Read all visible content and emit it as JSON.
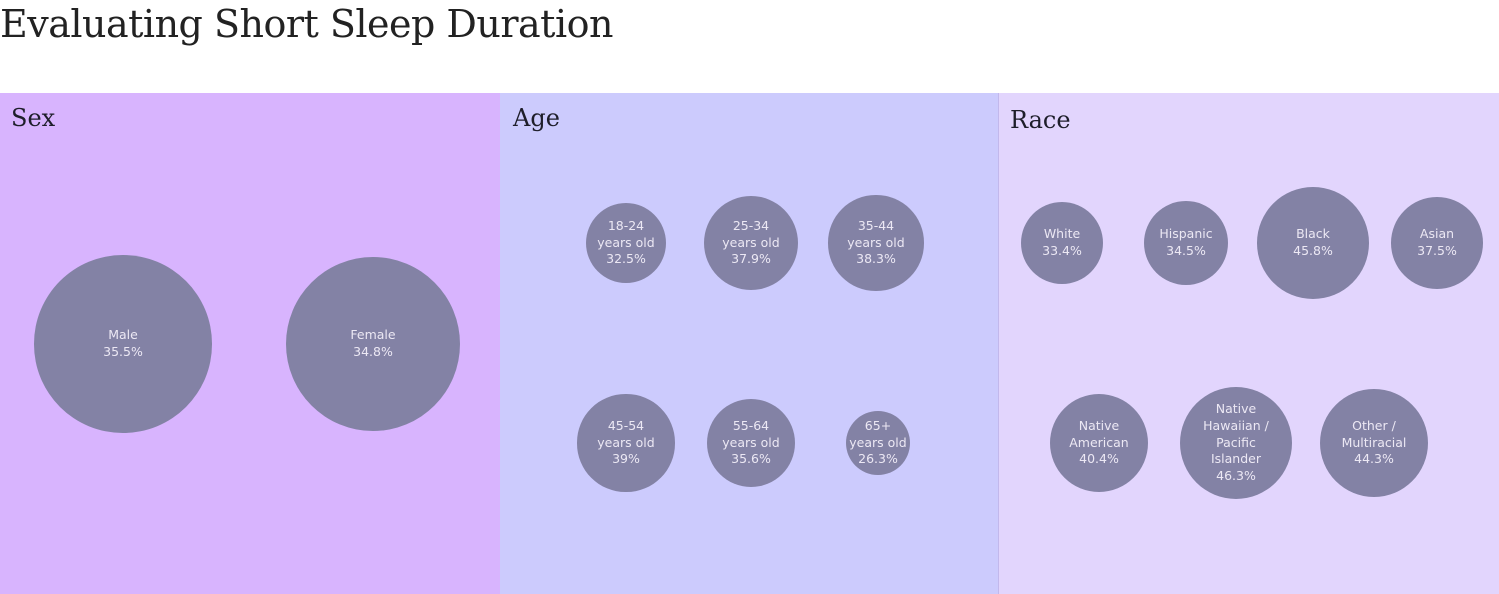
{
  "title": "Evaluating Short Sleep Duration",
  "colors": {
    "bubble": "#8382a5",
    "bubble_text": "#ece8f4"
  },
  "chart_data": [
    {
      "type": "bubble",
      "title": "Sex",
      "background": "#d8b4fe",
      "unit": "%",
      "categories": [
        "Male",
        "Female"
      ],
      "values": [
        35.5,
        34.8
      ],
      "labels": [
        "Male\n35.5%",
        "Female\n34.8%"
      ]
    },
    {
      "type": "bubble",
      "title": "Age",
      "background": "#cccbfd",
      "unit": "%",
      "categories": [
        "18-24 years old",
        "25-34 years old",
        "35-44 years old",
        "45-54 years old",
        "55-64 years old",
        "65+ years old"
      ],
      "values": [
        32.5,
        37.9,
        38.3,
        39,
        35.6,
        26.3
      ],
      "labels": [
        "18-24\nyears old\n32.5%",
        "25-34\nyears old\n37.9%",
        "35-44\nyears old\n38.3%",
        "45-54\nyears old\n39%",
        "55-64\nyears old\n35.6%",
        "65+\nyears old\n26.3%"
      ]
    },
    {
      "type": "bubble",
      "title": "Race",
      "background": "#e2d5fd",
      "unit": "%",
      "categories": [
        "White",
        "Hispanic",
        "Black",
        "Asian",
        "Native American",
        "Native Hawaiian / Pacific Islander",
        "Other / Multiracial"
      ],
      "values": [
        33.4,
        34.5,
        45.8,
        37.5,
        40.4,
        46.3,
        44.3
      ],
      "labels": [
        "White\n33.4%",
        "Hispanic\n34.5%",
        "Black\n45.8%",
        "Asian\n37.5%",
        "Native\nAmerican\n40.4%",
        "Native\nHawaiian /\nPacific\nIslander\n46.3%",
        "Other /\nMultiracial\n44.3%"
      ]
    }
  ]
}
